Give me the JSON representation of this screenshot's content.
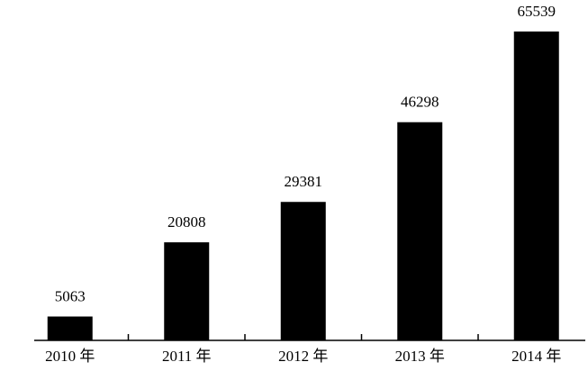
{
  "chart_data": {
    "type": "bar",
    "categories": [
      "2010 年",
      "2011 年",
      "2012 年",
      "2013 年",
      "2014 年"
    ],
    "values": [
      5063,
      20808,
      29381,
      46298,
      65539
    ],
    "color": "#000000"
  }
}
